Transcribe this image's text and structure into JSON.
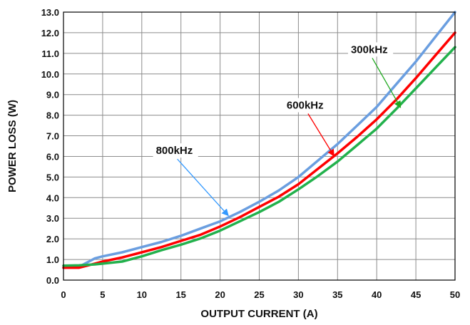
{
  "chart_data": {
    "type": "line",
    "title": "",
    "xlabel": "OUTPUT CURRENT (A)",
    "ylabel": "POWER LOSS (W)",
    "xlim": [
      0,
      50
    ],
    "ylim": [
      0,
      13
    ],
    "xticks": [
      0,
      5,
      10,
      15,
      20,
      25,
      30,
      35,
      40,
      45,
      50
    ],
    "yticks": [
      0,
      1,
      2,
      3,
      4,
      5,
      6,
      7,
      8,
      9,
      10,
      11,
      12,
      13
    ],
    "xtick_labels": [
      "0",
      "5",
      "10",
      "15",
      "20",
      "25",
      "30",
      "35",
      "40",
      "45",
      "50"
    ],
    "ytick_labels": [
      "0.0",
      "1.0",
      "2.0",
      "3.0",
      "4.0",
      "5.0",
      "6.0",
      "7.0",
      "8.0",
      "9.0",
      "10.0",
      "11.0",
      "12.0",
      "13.0"
    ],
    "grid": true,
    "series": [
      {
        "name": "800kHz",
        "color": "#6a9ee0",
        "x": [
          0,
          2,
          3,
          4,
          5,
          7.5,
          10,
          12.5,
          15,
          17.5,
          20,
          22.5,
          25,
          27.5,
          30,
          32.5,
          35,
          37.5,
          40,
          42.5,
          45,
          47.5,
          50
        ],
        "y": [
          0.6,
          0.65,
          0.85,
          1.05,
          1.15,
          1.35,
          1.6,
          1.85,
          2.15,
          2.5,
          2.85,
          3.3,
          3.8,
          4.35,
          5.0,
          5.8,
          6.6,
          7.5,
          8.4,
          9.5,
          10.6,
          11.8,
          13.0
        ]
      },
      {
        "name": "600kHz",
        "color": "#ff0000",
        "x": [
          0,
          2,
          3,
          4,
          5,
          7.5,
          10,
          12.5,
          15,
          17.5,
          20,
          22.5,
          25,
          27.5,
          30,
          32.5,
          35,
          37.5,
          40,
          42.5,
          45,
          47.5,
          50
        ],
        "y": [
          0.6,
          0.6,
          0.7,
          0.8,
          0.9,
          1.1,
          1.35,
          1.6,
          1.9,
          2.2,
          2.6,
          3.05,
          3.55,
          4.05,
          4.65,
          5.4,
          6.15,
          6.95,
          7.8,
          8.75,
          9.8,
          10.9,
          12.0
        ]
      },
      {
        "name": "300kHz",
        "color": "#22b14c",
        "x": [
          0,
          2,
          3,
          4,
          5,
          7.5,
          10,
          12.5,
          15,
          17.5,
          20,
          22.5,
          25,
          27.5,
          30,
          32.5,
          35,
          37.5,
          40,
          42.5,
          45,
          47.5,
          50
        ],
        "y": [
          0.7,
          0.72,
          0.74,
          0.76,
          0.8,
          0.9,
          1.15,
          1.45,
          1.72,
          2.02,
          2.4,
          2.85,
          3.3,
          3.8,
          4.4,
          5.05,
          5.75,
          6.55,
          7.35,
          8.3,
          9.3,
          10.3,
          11.3
        ]
      }
    ],
    "annotations": [
      {
        "text": "800kHz",
        "label_x": 11.8,
        "label_y": 6.15,
        "arrow_to_x": 21.0,
        "arrow_to_y": 3.15,
        "color": "#3399ff"
      },
      {
        "text": "600kHz",
        "label_x": 28.5,
        "label_y": 8.35,
        "arrow_to_x": 34.5,
        "arrow_to_y": 6.05,
        "color": "#ff0000"
      },
      {
        "text": "300kHz",
        "label_x": 36.7,
        "label_y": 11.05,
        "arrow_to_x": 43.0,
        "arrow_to_y": 8.4,
        "color": "#22aa22"
      }
    ]
  }
}
